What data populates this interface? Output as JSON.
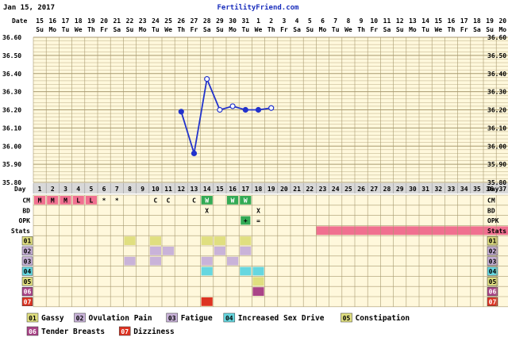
{
  "header": {
    "date": "Jan 15, 2017",
    "site": "FertilityFriend.com"
  },
  "row_labels": {
    "date": "Date",
    "day": "Day",
    "cm": "CM",
    "bd": "BD",
    "opk": "OPK",
    "stats": "Stats"
  },
  "dates": [
    "15",
    "16",
    "17",
    "18",
    "19",
    "20",
    "21",
    "22",
    "23",
    "24",
    "25",
    "26",
    "27",
    "28",
    "29",
    "30",
    "31",
    "1",
    "2",
    "3",
    "4",
    "5",
    "6",
    "7",
    "8",
    "9",
    "10",
    "11",
    "12",
    "13",
    "14",
    "15",
    "16",
    "17",
    "18",
    "19",
    "20"
  ],
  "weekdays": [
    "Su",
    "Mo",
    "Tu",
    "We",
    "Th",
    "Fr",
    "Sa",
    "Su",
    "Mo",
    "Tu",
    "We",
    "Th",
    "Fr",
    "Sa",
    "Su",
    "Mo",
    "Tu",
    "We",
    "Th",
    "Fr",
    "Sa",
    "Su",
    "Mo",
    "Tu",
    "We",
    "Th",
    "Fr",
    "Sa",
    "Su",
    "Mo",
    "Tu",
    "We",
    "Th",
    "Fr",
    "Sa",
    "Su",
    "Mo"
  ],
  "days": [
    "1",
    "2",
    "3",
    "4",
    "5",
    "6",
    "7",
    "8",
    "9",
    "10",
    "11",
    "12",
    "13",
    "14",
    "15",
    "16",
    "17",
    "18",
    "19",
    "20",
    "21",
    "22",
    "23",
    "24",
    "25",
    "26",
    "27",
    "28",
    "29",
    "30",
    "31",
    "32",
    "33",
    "34",
    "35",
    "36",
    "37"
  ],
  "cm": [
    "M",
    "M",
    "M",
    "L",
    "L",
    "*",
    "*",
    "",
    "",
    "C",
    "C",
    "",
    "C",
    "W",
    "",
    "W",
    "W",
    "",
    "",
    "",
    "",
    "",
    "",
    "",
    "",
    "",
    "",
    "",
    "",
    "",
    "",
    "",
    "",
    "",
    "",
    "",
    ""
  ],
  "bd": [
    "",
    "",
    "",
    "",
    "",
    "",
    "",
    "",
    "",
    "",
    "",
    "",
    "",
    "X",
    "",
    "",
    "",
    "X",
    "",
    "",
    "",
    "",
    "",
    "",
    "",
    "",
    "",
    "",
    "",
    "",
    "",
    "",
    "",
    "",
    "",
    "",
    ""
  ],
  "opk": [
    "",
    "",
    "",
    "",
    "",
    "",
    "",
    "",
    "",
    "",
    "",
    "",
    "",
    "",
    "",
    "",
    "+",
    "=",
    "",
    "",
    "",
    "",
    "",
    "",
    "",
    "",
    "",
    "",
    "",
    "",
    "",
    "",
    "",
    "",
    "",
    "",
    ""
  ],
  "stats_start_day": 23,
  "colors": {
    "grid_bg": "#fff8dc",
    "grid_line": "#a89a70",
    "line": "#2233cc",
    "stats_bar": "#f07090",
    "cm_m": "#f07090",
    "cm_w": "#33aa55",
    "opk_plus": "#33aa55"
  },
  "chart_data": {
    "type": "line",
    "ylabel": "",
    "ylim": [
      35.8,
      36.6
    ],
    "yticks": [
      "35.80",
      "35.90",
      "36.00",
      "36.10",
      "36.20",
      "36.30",
      "36.40",
      "36.50",
      "36.60"
    ],
    "series": [
      {
        "points": [
          {
            "day": 12,
            "temp": 36.19,
            "filled": true
          },
          {
            "day": 13,
            "temp": 35.96,
            "filled": true
          },
          {
            "day": 14,
            "temp": 36.37,
            "filled": false
          },
          {
            "day": 15,
            "temp": 36.2,
            "filled": false
          },
          {
            "day": 16,
            "temp": 36.22,
            "filled": false
          },
          {
            "day": 17,
            "temp": 36.2,
            "filled": true
          },
          {
            "day": 18,
            "temp": 36.2,
            "filled": true
          },
          {
            "day": 19,
            "temp": 36.21,
            "filled": false
          }
        ]
      }
    ]
  },
  "symptoms": [
    {
      "code": "01",
      "label": "Gassy",
      "color": "#e0df80",
      "code_color": "#000000",
      "days": [
        8,
        10,
        14,
        15,
        17
      ]
    },
    {
      "code": "02",
      "label": "Ovulation Pain",
      "color": "#c9b3d9",
      "code_color": "#000000",
      "days": [
        10,
        11,
        15,
        17
      ]
    },
    {
      "code": "03",
      "label": "Fatigue",
      "color": "#c9b3d9",
      "code_color": "#000000",
      "days": [
        8,
        10,
        14,
        16
      ]
    },
    {
      "code": "04",
      "label": "Increased Sex Drive",
      "color": "#66d7e0",
      "code_color": "#000000",
      "days": [
        14,
        17,
        18
      ]
    },
    {
      "code": "05",
      "label": "Constipation",
      "color": "#e0df80",
      "code_color": "#000000",
      "days": [
        18
      ]
    },
    {
      "code": "06",
      "label": "Tender Breasts",
      "color": "#aa4488",
      "code_color": "#ffffff",
      "days": [
        18
      ]
    },
    {
      "code": "07",
      "label": "Dizziness",
      "color": "#dd3322",
      "code_color": "#ffffff",
      "days": [
        14
      ]
    }
  ]
}
